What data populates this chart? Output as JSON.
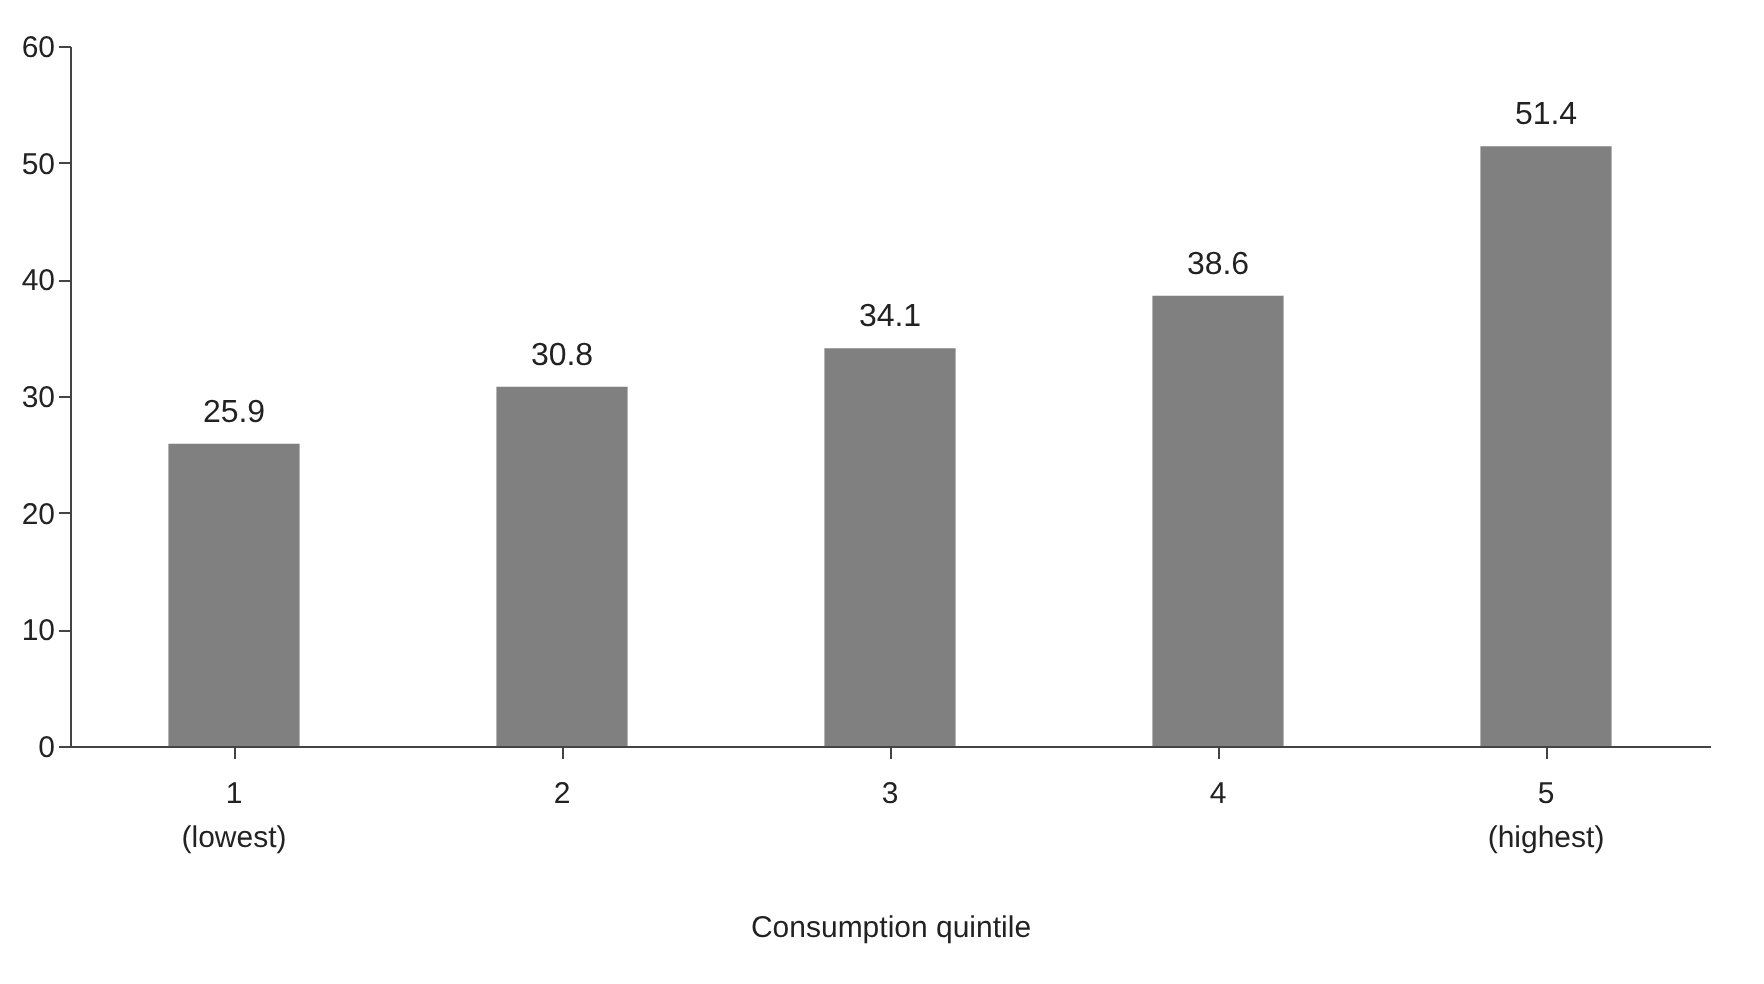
{
  "chart_data": {
    "type": "bar",
    "xlabel": "Consumption quintile",
    "categories": [
      "1\n(lowest)",
      "2",
      "3",
      "4",
      "5\n(highest)"
    ],
    "values": [
      25.9,
      30.8,
      34.1,
      38.6,
      51.4
    ],
    "color": "#808080",
    "ylim": [
      0,
      60
    ],
    "yticks": [
      0,
      10,
      20,
      30,
      40,
      50,
      60
    ],
    "grid": false,
    "data_labels": true
  }
}
